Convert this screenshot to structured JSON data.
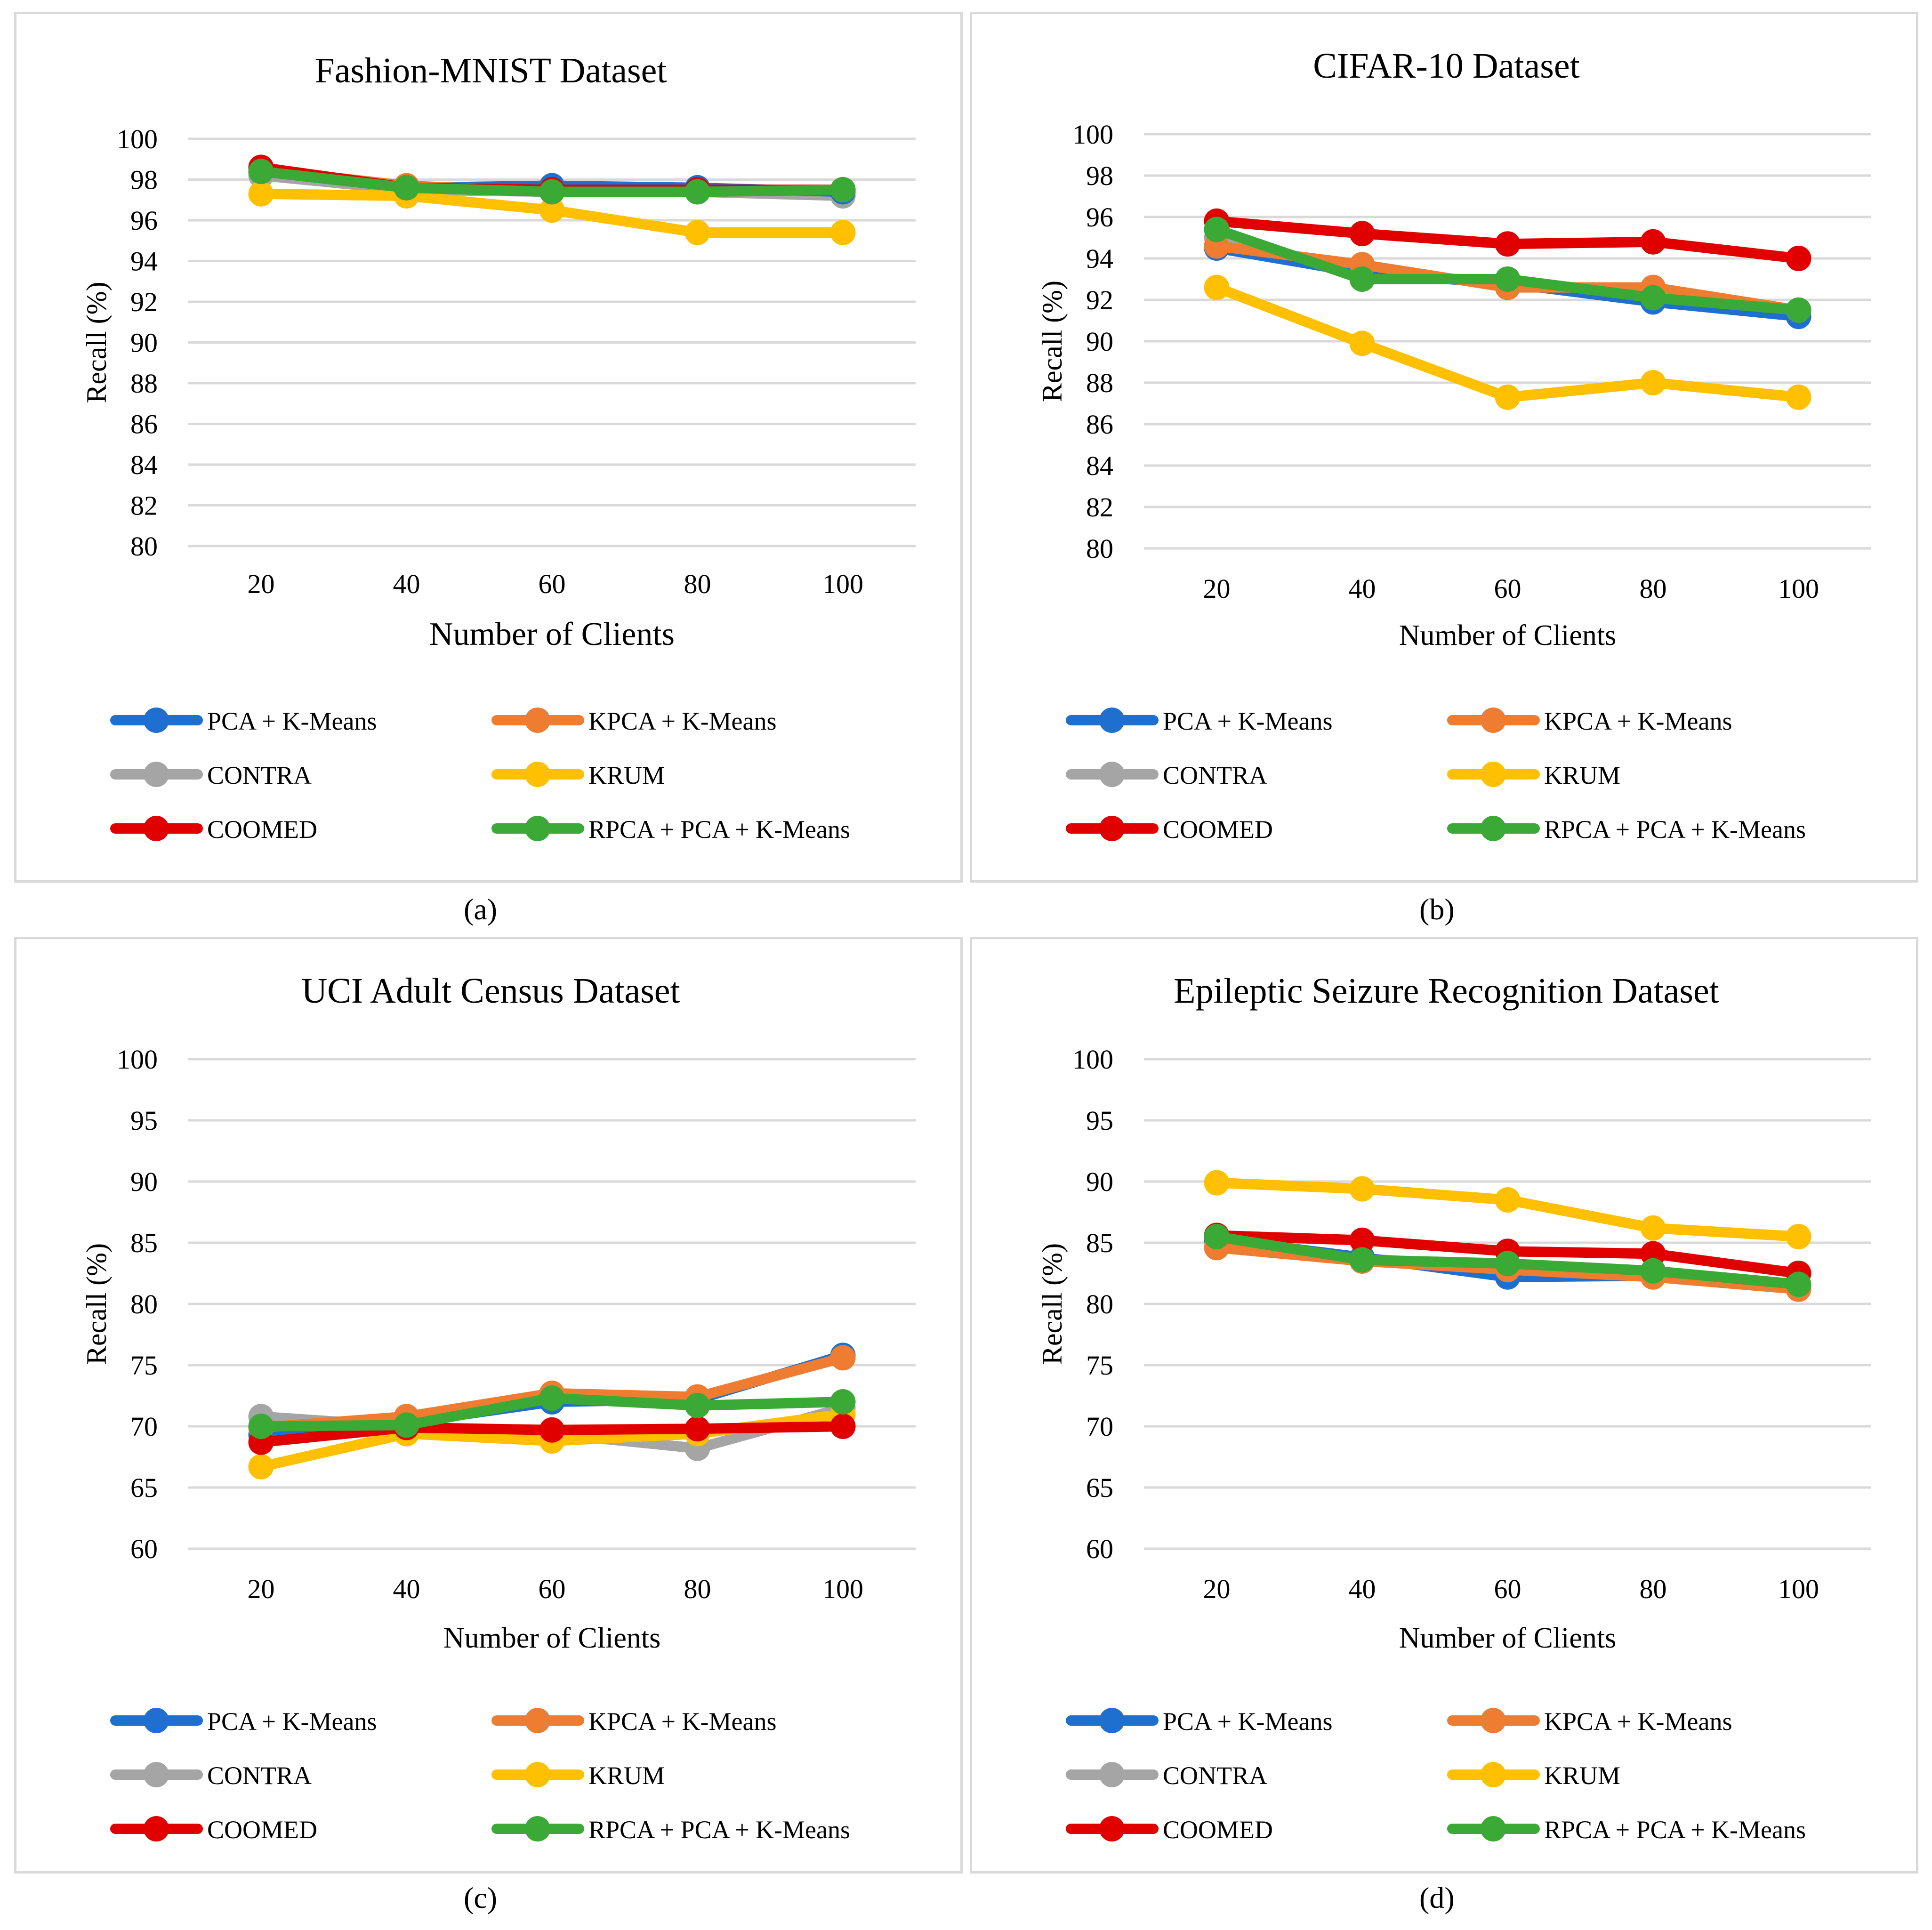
{
  "series_styles": [
    {
      "key": "pca",
      "color": "#1f6fd1"
    },
    {
      "key": "kpca",
      "color": "#ee7d31"
    },
    {
      "key": "contra",
      "color": "#a5a5a5"
    },
    {
      "key": "krum",
      "color": "#fec000"
    },
    {
      "key": "coomed",
      "color": "#e00000"
    },
    {
      "key": "rpca",
      "color": "#3aa935"
    }
  ],
  "chart_data": [
    {
      "type": "line",
      "caption": "(a)",
      "title": "Fashion-MNIST Dataset",
      "xlabel": "Number of Clients",
      "ylabel": "Recall (%)",
      "categories": [
        "20",
        "40",
        "60",
        "80",
        "100"
      ],
      "ylim": [
        80,
        100
      ],
      "yticks": [
        "80",
        "82",
        "84",
        "86",
        "88",
        "90",
        "92",
        "94",
        "96",
        "98",
        "100"
      ],
      "legend": [
        "PCA + K-Means",
        "KPCA + K-Means",
        "CONTRA",
        "KRUM",
        "COOMED",
        "RPCA + PCA + K-Means"
      ],
      "series": [
        {
          "name": "PCA + K-Means",
          "values": [
            98.4,
            97.6,
            97.7,
            97.6,
            97.4
          ]
        },
        {
          "name": "KPCA + K-Means",
          "values": [
            98.5,
            97.7,
            97.4,
            97.4,
            97.5
          ]
        },
        {
          "name": "CONTRA",
          "values": [
            98.2,
            97.5,
            97.4,
            97.4,
            97.2
          ]
        },
        {
          "name": "KRUM",
          "values": [
            97.3,
            97.2,
            96.5,
            95.4,
            95.4
          ]
        },
        {
          "name": "COOMED",
          "values": [
            98.6,
            97.6,
            97.5,
            97.5,
            97.5
          ]
        },
        {
          "name": "RPCA + PCA + K-Means",
          "values": [
            98.4,
            97.6,
            97.4,
            97.4,
            97.5
          ]
        }
      ]
    },
    {
      "type": "line",
      "caption": "(b)",
      "title": "CIFAR-10 Dataset",
      "xlabel": "Number of Clients",
      "ylabel": "Recall (%)",
      "categories": [
        "20",
        "40",
        "60",
        "80",
        "100"
      ],
      "ylim": [
        80,
        100
      ],
      "yticks": [
        "80",
        "82",
        "84",
        "86",
        "88",
        "90",
        "92",
        "94",
        "96",
        "98",
        "100"
      ],
      "legend": [
        "PCA + K-Means",
        "KPCA + K-Means",
        "CONTRA",
        "KRUM",
        "COOMED",
        "RPCA + PCA + K-Means"
      ],
      "series": [
        {
          "name": "PCA + K-Means",
          "values": [
            94.5,
            93.3,
            92.8,
            91.9,
            91.2
          ]
        },
        {
          "name": "KPCA + K-Means",
          "values": [
            94.6,
            93.7,
            92.6,
            92.6,
            91.5
          ]
        },
        {
          "name": "CONTRA",
          "values": [
            95.0,
            93.2,
            92.9,
            92.1,
            91.5
          ]
        },
        {
          "name": "KRUM",
          "values": [
            92.6,
            89.9,
            87.3,
            88.0,
            87.3
          ]
        },
        {
          "name": "COOMED",
          "values": [
            95.8,
            95.2,
            94.7,
            94.8,
            94.0
          ]
        },
        {
          "name": "RPCA + PCA + K-Means",
          "values": [
            95.4,
            93.0,
            93.0,
            92.1,
            91.5
          ]
        }
      ]
    },
    {
      "type": "line",
      "caption": "(c)",
      "title": "UCI Adult Census Dataset",
      "xlabel": "Number of Clients",
      "ylabel": "Recall (%)",
      "categories": [
        "20",
        "40",
        "60",
        "80",
        "100"
      ],
      "ylim": [
        60,
        100
      ],
      "yticks": [
        "60",
        "65",
        "70",
        "75",
        "80",
        "85",
        "90",
        "95",
        "100"
      ],
      "legend": [
        "PCA + K-Means",
        "KPCA + K-Means",
        "CONTRA",
        "KRUM",
        "COOMED",
        "RPCA + PCA + K-Means"
      ],
      "series": [
        {
          "name": "PCA + K-Means",
          "values": [
            69.3,
            70.3,
            72.0,
            72.2,
            75.8
          ]
        },
        {
          "name": "KPCA + K-Means",
          "values": [
            69.9,
            70.8,
            72.7,
            72.4,
            75.6
          ]
        },
        {
          "name": "CONTRA",
          "values": [
            70.8,
            70.0,
            69.4,
            68.2,
            71.5
          ]
        },
        {
          "name": "KRUM",
          "values": [
            66.7,
            69.4,
            68.8,
            69.4,
            71.0
          ]
        },
        {
          "name": "COOMED",
          "values": [
            68.7,
            69.9,
            69.7,
            69.8,
            70.0
          ]
        },
        {
          "name": "RPCA + PCA + K-Means",
          "values": [
            70.0,
            70.1,
            72.3,
            71.7,
            72.0
          ]
        }
      ]
    },
    {
      "type": "line",
      "caption": "(d)",
      "title": "Epileptic Seizure Recognition Dataset",
      "xlabel": "Number of Clients",
      "ylabel": "Recall (%)",
      "categories": [
        "20",
        "40",
        "60",
        "80",
        "100"
      ],
      "ylim": [
        60,
        100
      ],
      "yticks": [
        "60",
        "65",
        "70",
        "75",
        "80",
        "85",
        "90",
        "95",
        "100"
      ],
      "legend": [
        "PCA + K-Means",
        "KPCA + K-Means",
        "CONTRA",
        "KRUM",
        "COOMED",
        "RPCA + PCA + K-Means"
      ],
      "series": [
        {
          "name": "PCA + K-Means",
          "values": [
            85.3,
            83.8,
            82.2,
            82.3,
            81.5
          ]
        },
        {
          "name": "KPCA + K-Means",
          "values": [
            84.6,
            83.5,
            82.8,
            82.2,
            81.2
          ]
        },
        {
          "name": "CONTRA",
          "values": [
            85.2,
            83.7,
            83.0,
            82.6,
            81.5
          ]
        },
        {
          "name": "KRUM",
          "values": [
            89.9,
            89.4,
            88.5,
            86.2,
            85.5
          ]
        },
        {
          "name": "COOMED",
          "values": [
            85.6,
            85.2,
            84.3,
            84.1,
            82.5
          ]
        },
        {
          "name": "RPCA + PCA + K-Means",
          "values": [
            85.5,
            83.6,
            83.3,
            82.7,
            81.6
          ]
        }
      ]
    }
  ]
}
